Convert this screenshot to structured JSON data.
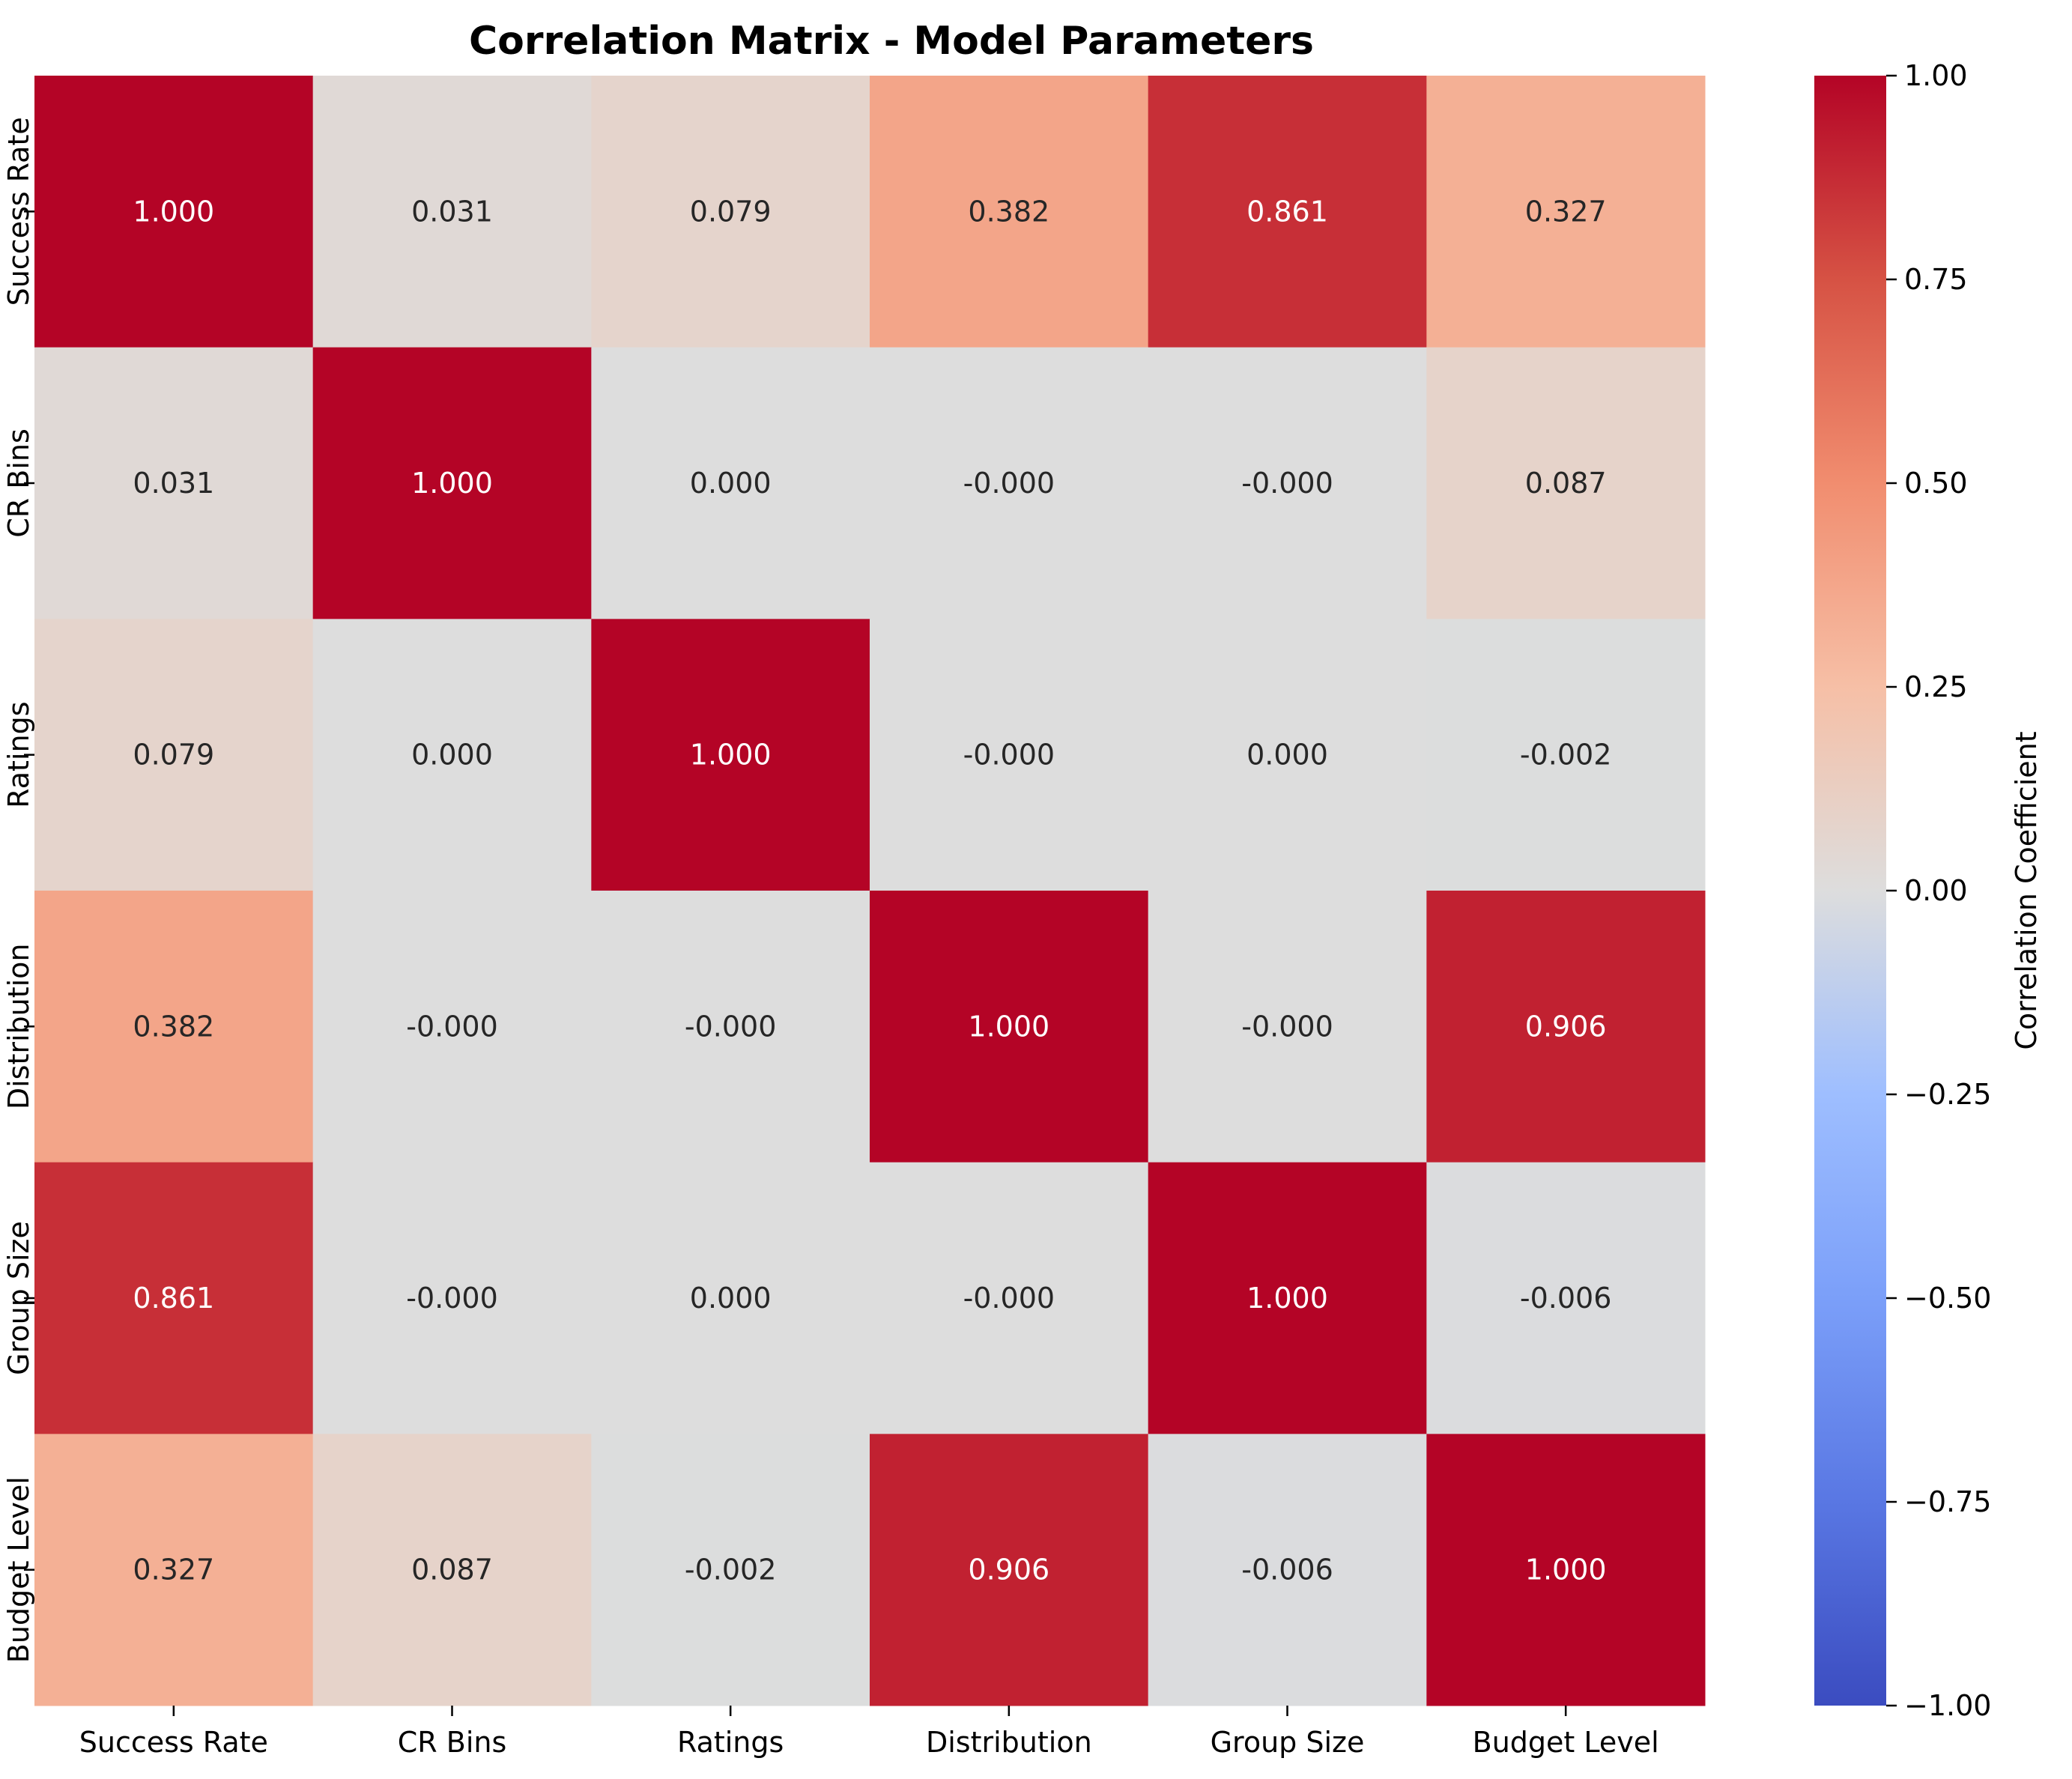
{
  "chart_data": {
    "type": "heatmap",
    "title": "Correlation Matrix - Model Parameters",
    "xlabel": "",
    "ylabel": "",
    "x_categories": [
      "Success Rate",
      "CR Bins",
      "Ratings",
      "Distribution",
      "Group Size",
      "Budget Level"
    ],
    "y_categories": [
      "Success Rate",
      "CR Bins",
      "Ratings",
      "Distribution",
      "Group Size",
      "Budget Level"
    ],
    "values": [
      [
        1.0,
        0.031,
        0.079,
        0.382,
        0.861,
        0.327
      ],
      [
        0.031,
        1.0,
        0.0,
        -0.0,
        -0.0,
        0.087
      ],
      [
        0.079,
        0.0,
        1.0,
        -0.0,
        0.0,
        -0.002
      ],
      [
        0.382,
        -0.0,
        -0.0,
        1.0,
        -0.0,
        0.906
      ],
      [
        0.861,
        -0.0,
        0.0,
        -0.0,
        1.0,
        -0.006
      ],
      [
        0.327,
        0.087,
        -0.002,
        0.906,
        -0.006,
        1.0
      ]
    ],
    "cell_labels": [
      [
        "1.000",
        "0.031",
        "0.079",
        "0.382",
        "0.861",
        "0.327"
      ],
      [
        "0.031",
        "1.000",
        "0.000",
        "-0.000",
        "-0.000",
        "0.087"
      ],
      [
        "0.079",
        "0.000",
        "1.000",
        "-0.000",
        "0.000",
        "-0.002"
      ],
      [
        "0.382",
        "-0.000",
        "-0.000",
        "1.000",
        "-0.000",
        "0.906"
      ],
      [
        "0.861",
        "-0.000",
        "0.000",
        "-0.000",
        "1.000",
        "-0.006"
      ],
      [
        "0.327",
        "0.087",
        "-0.002",
        "0.906",
        "-0.006",
        "1.000"
      ]
    ],
    "colormap": "coolwarm",
    "vmin": -1.0,
    "vmax": 1.0,
    "colorbar": {
      "label": "Correlation Coefficient",
      "ticks": [
        1.0,
        0.75,
        0.5,
        0.25,
        0.0,
        -0.25,
        -0.5,
        -0.75,
        -1.0
      ],
      "tick_labels": [
        "1.00",
        "0.75",
        "0.50",
        "0.25",
        "0.00",
        "−0.25",
        "−0.50",
        "−0.75",
        "−1.00"
      ]
    },
    "annotation_colors": {
      "dark": "#262626",
      "light": "#ffffff"
    },
    "grid": false
  }
}
